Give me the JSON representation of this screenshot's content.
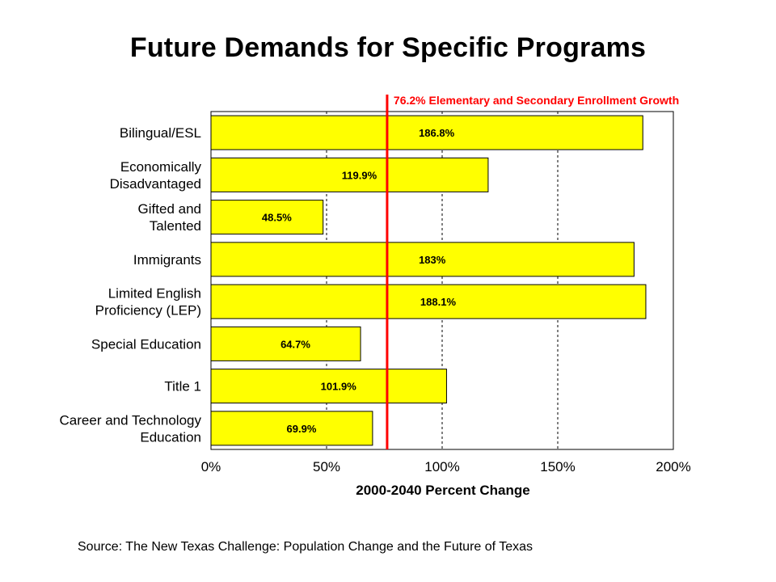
{
  "page": {
    "title": "Future Demands for Specific Programs",
    "source": "Source: The New Texas Challenge: Population Change and the Future of Texas"
  },
  "chart_data": {
    "type": "bar",
    "orientation": "horizontal",
    "categories": [
      [
        "Bilingual/ESL"
      ],
      [
        "Economically",
        "Disadvantaged"
      ],
      [
        "Gifted and",
        "Talented"
      ],
      [
        "Immigrants"
      ],
      [
        "Limited English",
        "Proficiency (LEP)"
      ],
      [
        "Special Education"
      ],
      [
        "Title 1"
      ],
      [
        "Career and Technology",
        "Education"
      ]
    ],
    "values": [
      186.8,
      119.9,
      48.5,
      183,
      188.1,
      64.7,
      101.9,
      69.9
    ],
    "data_labels": [
      "186.8%",
      "119.9%",
      "48.5%",
      "183%",
      "188.1%",
      "64.7%",
      "101.9%",
      "69.9%"
    ],
    "xlabel": "2000-2040 Percent Change",
    "xlim": [
      0,
      200
    ],
    "xticks": [
      0,
      50,
      100,
      150,
      200
    ],
    "xtick_labels": [
      "0%",
      "50%",
      "100%",
      "150%",
      "200%"
    ],
    "grid": "vertical dashed",
    "bar_color": "#FFFF00",
    "reference_line": {
      "value": 76.2,
      "label": "76.2% Elementary and Secondary Enrollment Growth",
      "color": "#FF0000"
    }
  }
}
